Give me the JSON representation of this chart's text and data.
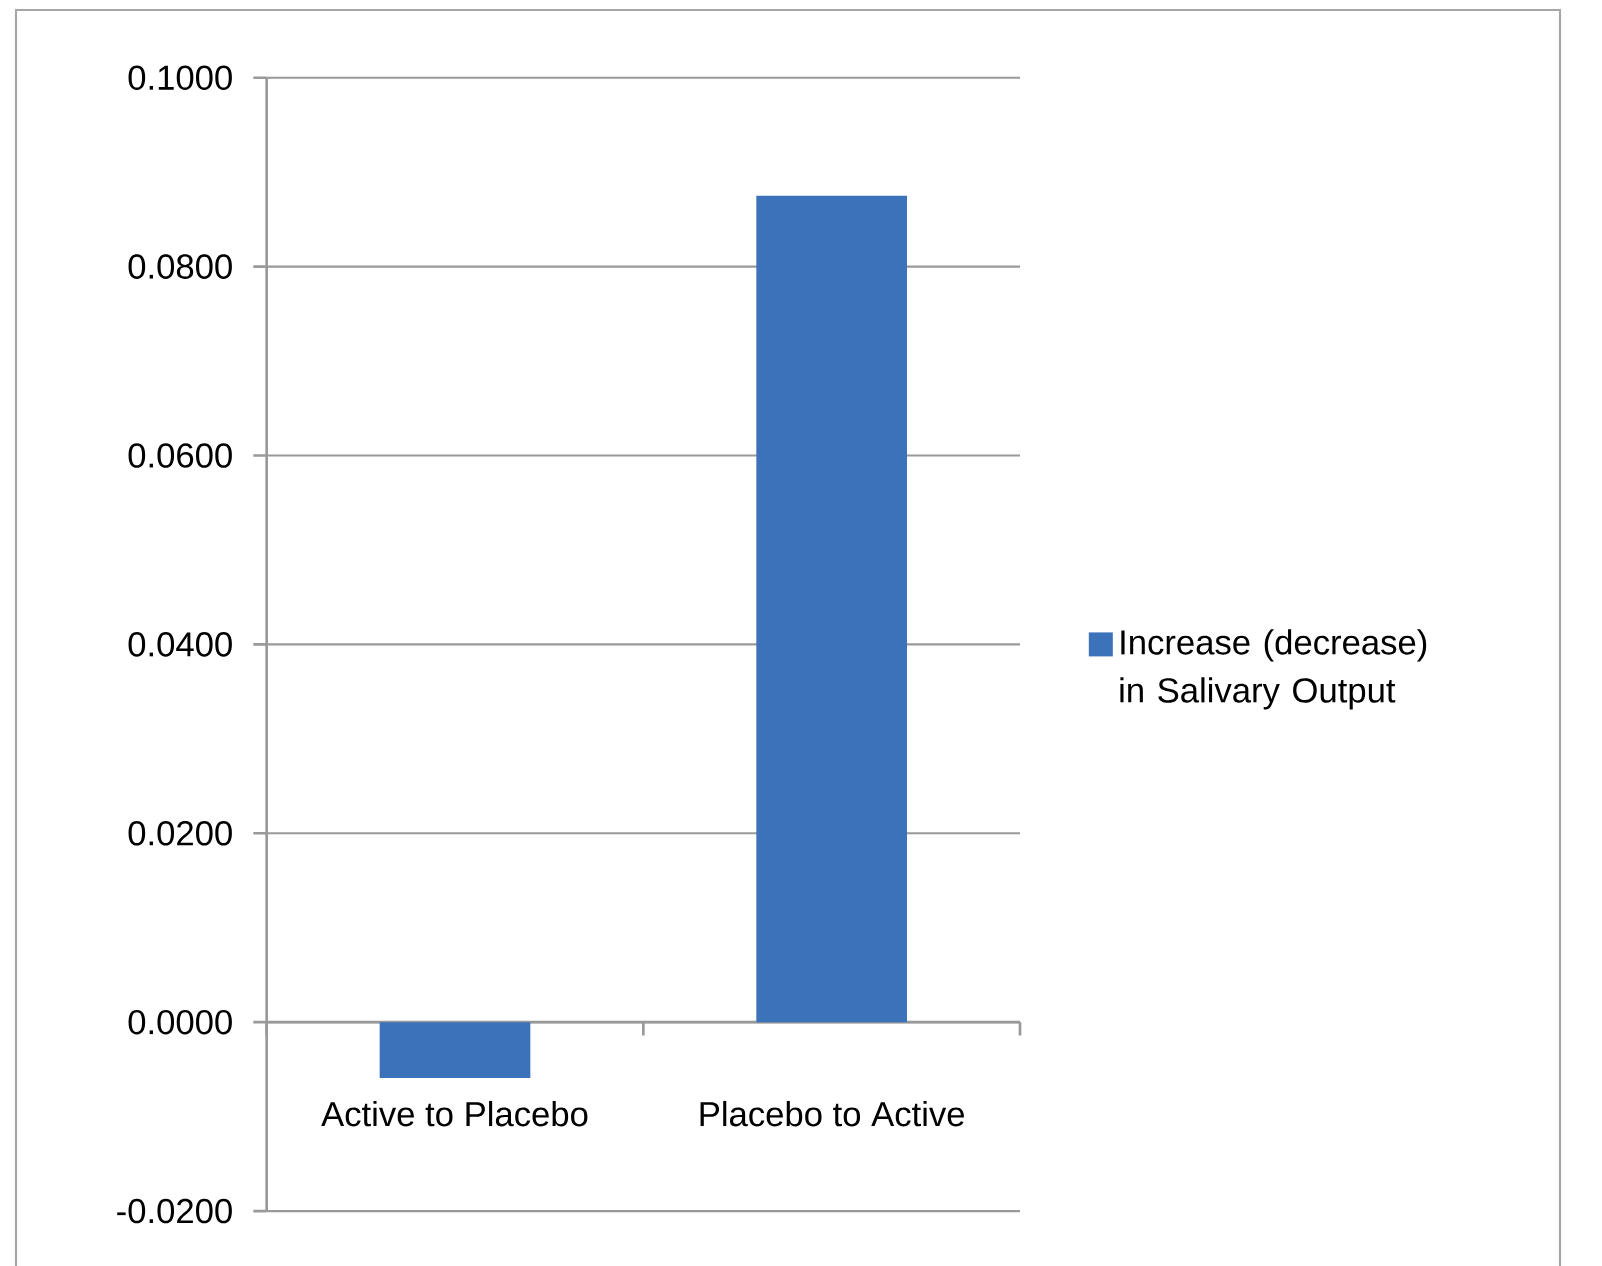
{
  "chart_data": {
    "type": "bar",
    "categories": [
      "Active to Placebo",
      "Placebo to Active"
    ],
    "series": [
      {
        "name": "Increase (decrease) in Salivary Output",
        "color": "#3b72ba",
        "values": [
          -0.0059,
          0.0875
        ]
      }
    ],
    "ylim": [
      -0.02,
      0.1
    ],
    "yticks": [
      {
        "value": -0.02,
        "label": "-0.0200"
      },
      {
        "value": 0,
        "label": "0.0000"
      },
      {
        "value": 0.02,
        "label": "0.0200"
      },
      {
        "value": 0.04,
        "label": "0.0400"
      },
      {
        "value": 0.06,
        "label": "0.0600"
      },
      {
        "value": 0.08,
        "label": "0.0800"
      },
      {
        "value": 0.1,
        "label": "0.1000"
      }
    ],
    "grid": "y",
    "legend": "right"
  }
}
